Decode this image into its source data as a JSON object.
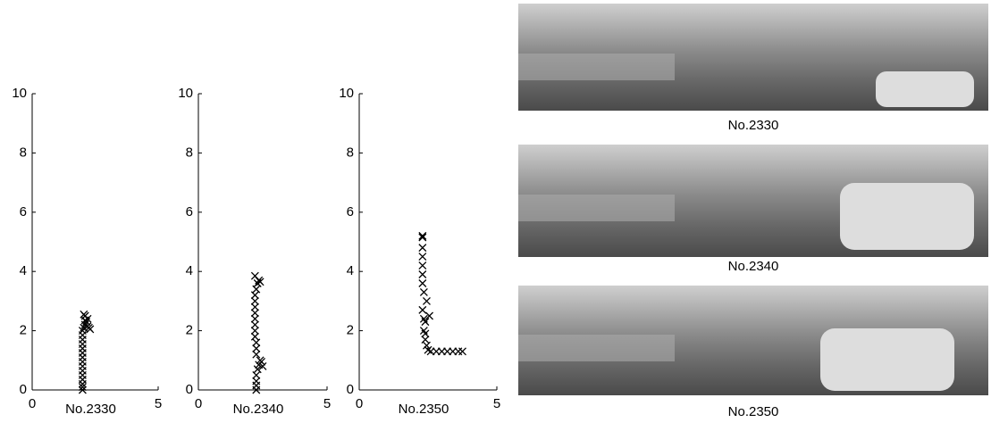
{
  "chart_data": [
    {
      "type": "scatter",
      "xlabel": "No.2330",
      "xlim": [
        0,
        5
      ],
      "ylim": [
        0,
        10
      ],
      "xticks": [
        0,
        5
      ],
      "yticks": [
        0,
        2,
        4,
        6,
        8,
        10
      ],
      "color": "#000000",
      "x": [
        2.0,
        2.0,
        2.0,
        2.0,
        2.0,
        2.0,
        2.0,
        2.0,
        2.0,
        2.0,
        2.0,
        2.0,
        2.0,
        2.0,
        2.0,
        2.05,
        2.1,
        2.15,
        2.2,
        2.1,
        2.25,
        2.3,
        2.2,
        2.1,
        2.05
      ],
      "y": [
        0.0,
        0.1,
        0.2,
        0.35,
        0.5,
        0.65,
        0.8,
        0.95,
        1.1,
        1.25,
        1.4,
        1.55,
        1.7,
        1.85,
        2.0,
        2.1,
        2.2,
        2.3,
        2.4,
        2.5,
        2.1,
        2.05,
        2.15,
        2.35,
        2.55
      ]
    },
    {
      "type": "scatter",
      "xlabel": "No.2340",
      "xlim": [
        0,
        5
      ],
      "ylim": [
        0,
        10
      ],
      "xticks": [
        0,
        5
      ],
      "yticks": [
        0,
        2,
        4,
        6,
        8,
        10
      ],
      "color": "#000000",
      "x": [
        2.25,
        2.25,
        2.25,
        2.25,
        2.3,
        2.35,
        2.45,
        2.5,
        2.4,
        2.25,
        2.25,
        2.25,
        2.2,
        2.2,
        2.2,
        2.2,
        2.2,
        2.2,
        2.2,
        2.2,
        2.25,
        2.3,
        2.35,
        2.4,
        2.2
      ],
      "y": [
        0.0,
        0.15,
        0.3,
        0.5,
        0.7,
        0.85,
        0.95,
        0.8,
        1.0,
        1.2,
        1.4,
        1.6,
        1.8,
        2.0,
        2.2,
        2.4,
        2.6,
        2.8,
        3.0,
        3.2,
        3.4,
        3.6,
        3.7,
        3.65,
        3.85
      ]
    },
    {
      "type": "scatter",
      "xlabel": "No.2350",
      "xlim": [
        0,
        5
      ],
      "ylim": [
        0,
        10
      ],
      "xticks": [
        0,
        5
      ],
      "yticks": [
        0,
        2,
        4,
        6,
        8,
        10
      ],
      "color": "#000000",
      "x": [
        2.3,
        2.3,
        2.3,
        2.3,
        2.3,
        2.3,
        2.3,
        2.35,
        2.45,
        2.55,
        2.4,
        2.35,
        2.4,
        2.45,
        2.5,
        2.6,
        2.8,
        3.0,
        3.2,
        3.4,
        3.6,
        3.75,
        2.3,
        2.35,
        2.4
      ],
      "y": [
        5.2,
        5.15,
        4.8,
        4.5,
        4.2,
        3.9,
        3.6,
        3.3,
        3.0,
        2.5,
        2.3,
        2.0,
        1.7,
        1.5,
        1.35,
        1.3,
        1.3,
        1.3,
        1.3,
        1.3,
        1.3,
        1.3,
        2.7,
        2.4,
        1.9
      ]
    }
  ],
  "images": [
    {
      "caption": "No.2330"
    },
    {
      "caption": "No.2340"
    },
    {
      "caption": "No.2350"
    }
  ]
}
